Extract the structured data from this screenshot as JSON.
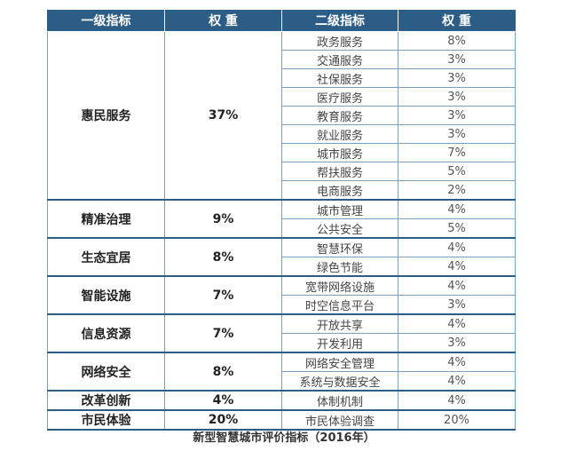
{
  "header": {
    "col1": "一级指标",
    "col2": "权 重",
    "col3": "二级指标",
    "col4": "权 重"
  },
  "groups": [
    {
      "level1": "惠民服务",
      "weight": "37%",
      "items": [
        {
          "name": "政务服务",
          "weight": "8%"
        },
        {
          "name": "交通服务",
          "weight": "3%"
        },
        {
          "name": "社保服务",
          "weight": "3%"
        },
        {
          "name": "医疗服务",
          "weight": "3%"
        },
        {
          "name": "教育服务",
          "weight": "3%"
        },
        {
          "name": "就业服务",
          "weight": "3%"
        },
        {
          "name": "城市服务",
          "weight": "7%"
        },
        {
          "name": "帮扶服务",
          "weight": "5%"
        },
        {
          "name": "电商服务",
          "weight": "2%"
        }
      ]
    },
    {
      "level1": "精准治理",
      "weight": "9%",
      "items": [
        {
          "name": "城市管理",
          "weight": "4%"
        },
        {
          "name": "公共安全",
          "weight": "5%"
        }
      ]
    },
    {
      "level1": "生态宜居",
      "weight": "8%",
      "items": [
        {
          "name": "智慧环保",
          "weight": "4%"
        },
        {
          "name": "绿色节能",
          "weight": "4%"
        }
      ]
    },
    {
      "level1": "智能设施",
      "weight": "7%",
      "items": [
        {
          "name": "宽带网络设施",
          "weight": "4%"
        },
        {
          "name": "时空信息平台",
          "weight": "3%"
        }
      ]
    },
    {
      "level1": "信息资源",
      "weight": "7%",
      "items": [
        {
          "name": "开放共享",
          "weight": "4%"
        },
        {
          "name": "开发利用",
          "weight": "3%"
        }
      ]
    },
    {
      "level1": "网络安全",
      "weight": "8%",
      "items": [
        {
          "name": "网络安全管理",
          "weight": "4%"
        },
        {
          "name": "系统与数据安全",
          "weight": "4%"
        }
      ]
    },
    {
      "level1": "改革创新",
      "weight": "4%",
      "items": [
        {
          "name": "体制机制",
          "weight": "4%"
        }
      ]
    },
    {
      "level1": "市民体验",
      "weight": "20%",
      "items": [
        {
          "name": "市民体验调查",
          "weight": "20%"
        }
      ]
    }
  ],
  "caption": "新型智慧城市评价指标（2016年）",
  "colors": {
    "header_bg": "#2c5d87",
    "grid_line": "#7f9fb8"
  }
}
